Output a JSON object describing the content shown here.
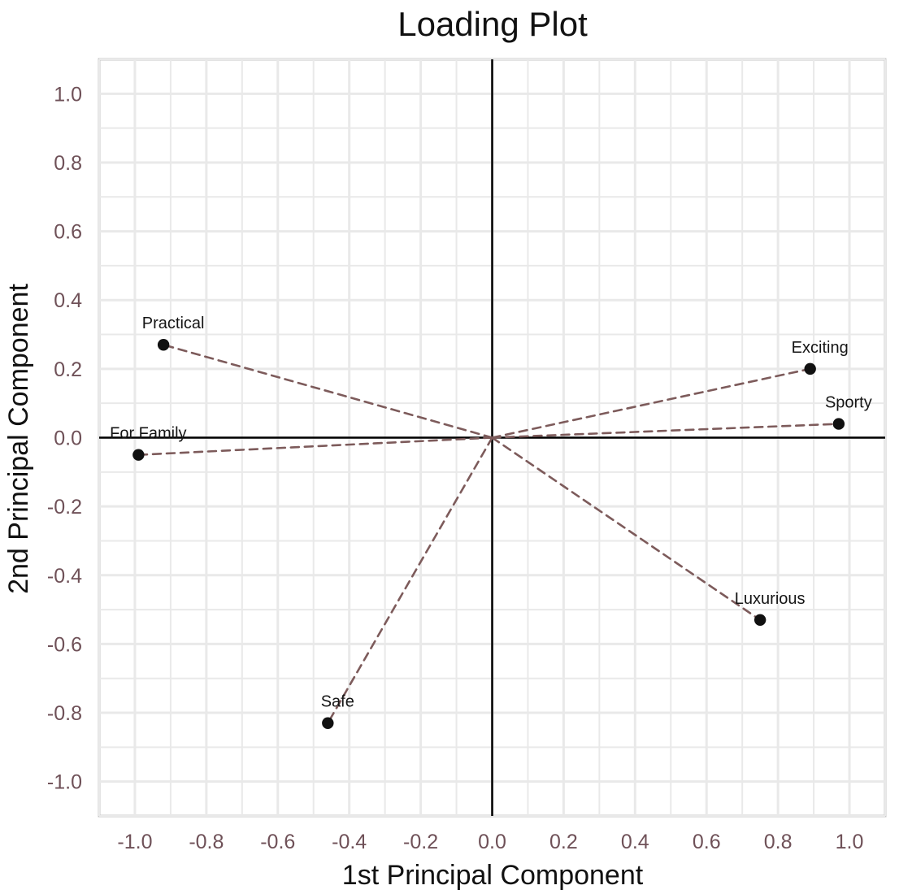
{
  "chart_data": {
    "type": "scatter",
    "title": "Loading Plot",
    "xlabel": "1st Principal Component",
    "ylabel": "2nd Principal Component",
    "xlim": [
      -1.1,
      1.1
    ],
    "ylim": [
      -1.1,
      1.1
    ],
    "x_ticks": [
      -1.0,
      -0.8,
      -0.6,
      -0.4,
      -0.2,
      0.0,
      0.2,
      0.4,
      0.6,
      0.8,
      1.0
    ],
    "x_tick_labels": [
      "-1.0",
      "-0.8",
      "-0.6",
      "-0.4",
      "-0.2",
      "0.0",
      "0.2",
      "0.4",
      "0.6",
      "0.8",
      "1.0"
    ],
    "y_ticks": [
      1.0,
      0.8,
      0.6,
      0.4,
      0.2,
      0.0,
      -0.2,
      -0.4,
      -0.6,
      -0.8,
      -1.0
    ],
    "y_tick_labels": [
      "1.0",
      "0.8",
      "0.6",
      "0.4",
      "0.2",
      "0.0",
      "-0.2",
      "-0.4",
      "-0.6",
      "-0.8",
      "-1.0"
    ],
    "grid": true,
    "reference_lines": {
      "x": 0,
      "y": 0
    },
    "vectors_from_origin": true,
    "colors": {
      "points": "#111111",
      "vectors": "#7d5b5b",
      "reference_lines": "#000000",
      "grid": "#e9e9e9",
      "tick_labels": "#6f5158"
    },
    "points": [
      {
        "label": "Practical",
        "x": -0.92,
        "y": 0.27
      },
      {
        "label": "For Family",
        "x": -0.99,
        "y": -0.05
      },
      {
        "label": "Safe",
        "x": -0.46,
        "y": -0.83
      },
      {
        "label": "Exciting",
        "x": 0.89,
        "y": 0.2
      },
      {
        "label": "Sporty",
        "x": 0.97,
        "y": 0.04
      },
      {
        "label": "Luxurious",
        "x": 0.75,
        "y": -0.53
      }
    ]
  }
}
